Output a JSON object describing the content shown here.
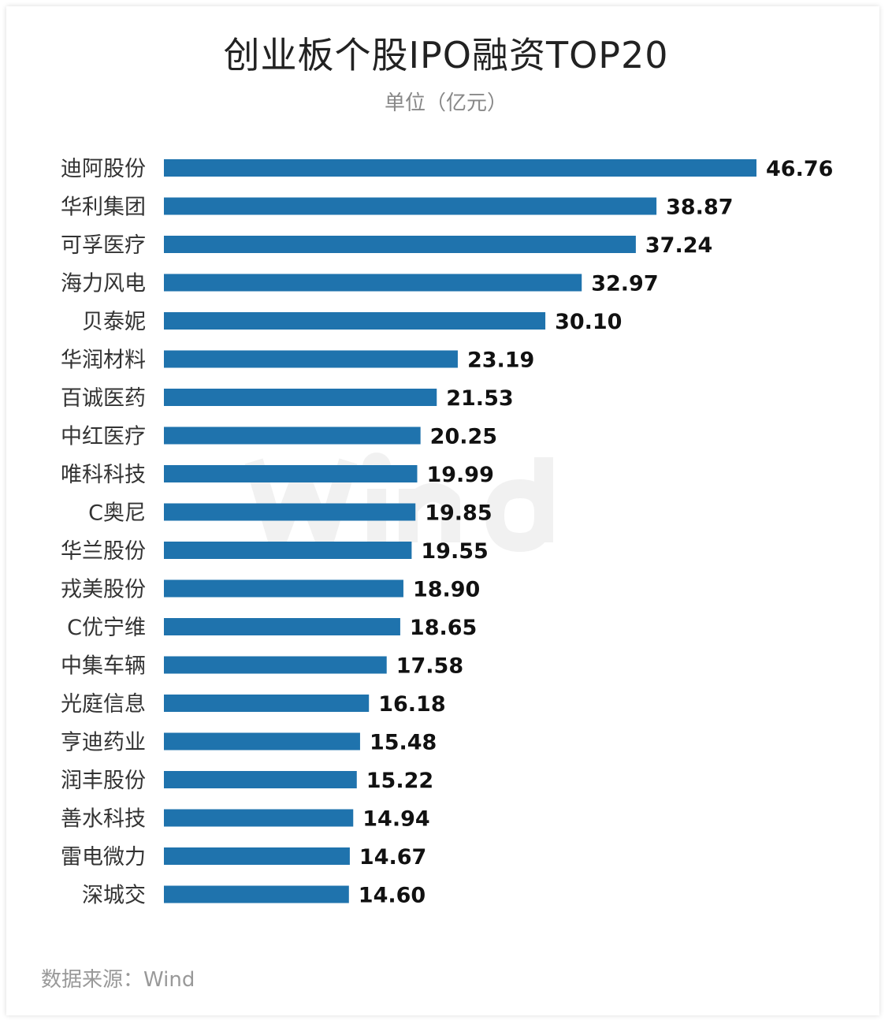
{
  "chart_data": {
    "type": "bar",
    "orientation": "horizontal",
    "title": "创业板个股IPO融资TOP20",
    "subtitle": "单位（亿元）",
    "categories": [
      "迪阿股份",
      "华利集团",
      "可孚医疗",
      "海力风电",
      "贝泰妮",
      "华润材料",
      "百诚医药",
      "中红医疗",
      "唯科科技",
      "C奥尼",
      "华兰股份",
      "戎美股份",
      "C优宁维",
      "中集车辆",
      "光庭信息",
      "亨迪药业",
      "润丰股份",
      "善水科技",
      "雷电微力",
      "深城交"
    ],
    "values": [
      46.76,
      38.87,
      37.24,
      32.97,
      30.1,
      23.19,
      21.53,
      20.25,
      19.99,
      19.85,
      19.55,
      18.9,
      18.65,
      17.58,
      16.18,
      15.48,
      15.22,
      14.94,
      14.67,
      14.6
    ],
    "value_labels": [
      "46.76",
      "38.87",
      "37.24",
      "32.97",
      "30.10",
      "23.19",
      "21.53",
      "20.25",
      "19.99",
      "19.85",
      "19.55",
      "18.90",
      "18.65",
      "17.58",
      "16.18",
      "15.48",
      "15.22",
      "14.94",
      "14.67",
      "14.60"
    ],
    "bar_color": "#1f73ad",
    "grid": false,
    "legend": "none"
  },
  "watermark": "Wind",
  "source": "数据来源：Wind"
}
